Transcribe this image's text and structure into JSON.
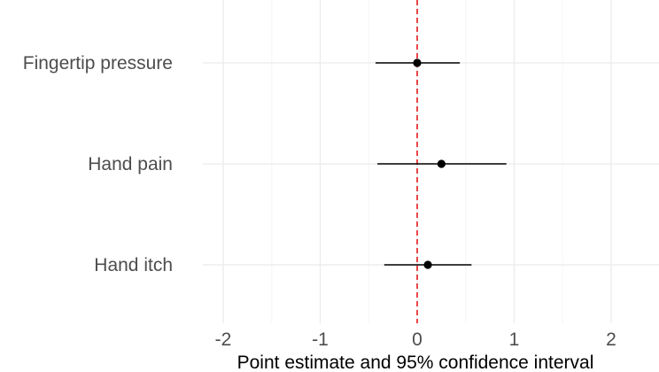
{
  "chart_data": {
    "type": "scatter",
    "title": "",
    "xlabel": "Point estimate and 95% confidence interval",
    "ylabel": "",
    "xlim": [
      -2.2,
      2.5
    ],
    "x_ticks": [
      -2,
      -1,
      0,
      1,
      2
    ],
    "x_tick_labels": [
      "-2",
      "-1",
      "0",
      "1",
      "2"
    ],
    "categories": [
      "Fingertip pressure",
      "Hand pain",
      "Hand itch"
    ],
    "estimates": [
      0.0,
      0.25,
      0.11
    ],
    "ci_lower": [
      -0.43,
      -0.41,
      -0.34
    ],
    "ci_upper": [
      0.44,
      0.92,
      0.56
    ],
    "reference_line": 0,
    "grid": true,
    "colors": {
      "points": "#000000",
      "reference_line": "#e41a1c",
      "grid_major": "#ebebeb",
      "grid_minor": "#f5f5f5",
      "tick_text": "#4d4d4d"
    }
  }
}
